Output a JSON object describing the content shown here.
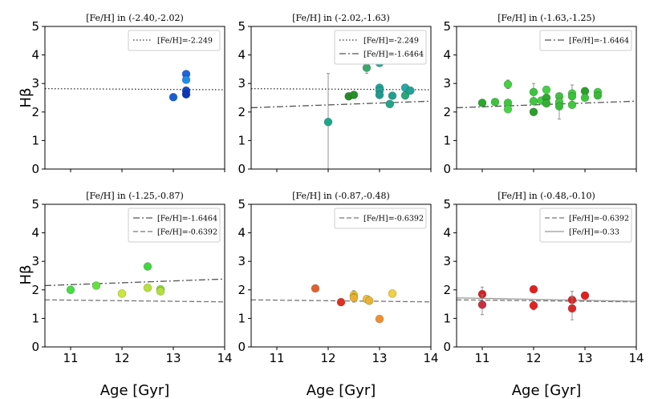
{
  "figure": {
    "ylabel": "Hβ",
    "xlabel": "Age [Gyr]",
    "xlim": [
      10.5,
      14
    ],
    "ylim": [
      0,
      5
    ],
    "xticks": [
      "11",
      "12",
      "13",
      "14"
    ],
    "yticks": [
      "0",
      "1",
      "2",
      "3",
      "4",
      "5"
    ],
    "colors": {
      "line_dotted": "#333333",
      "line_dashdot": "#555555",
      "line_dashed": "#777777",
      "line_solid": "#999999",
      "errorbar": "#888888"
    }
  },
  "chart_data": [
    {
      "type": "scatter",
      "title": "[Fe/H] in (-2.40,-2.02)",
      "legend": [
        {
          "label": "[Fe/H]=-2.249",
          "style": "dotted"
        }
      ],
      "lines": [
        {
          "style": "dotted",
          "x": [
            10.5,
            14
          ],
          "y": [
            2.82,
            2.78
          ]
        }
      ],
      "points": [
        {
          "x": 13.0,
          "y": 2.52,
          "err": 0.05,
          "color": "#1a5fd0"
        },
        {
          "x": 13.25,
          "y": 3.33,
          "err": 0.05,
          "color": "#1e63e0"
        },
        {
          "x": 13.25,
          "y": 3.13,
          "err": 0.05,
          "color": "#1f8ee8"
        },
        {
          "x": 13.25,
          "y": 2.75,
          "err": 0.05,
          "color": "#1247c9"
        },
        {
          "x": 13.25,
          "y": 2.62,
          "err": 0.05,
          "color": "#0e34b8"
        }
      ]
    },
    {
      "type": "scatter",
      "title": "[Fe/H] in (-2.02,-1.63)",
      "legend": [
        {
          "label": "[Fe/H]=-2.249",
          "style": "dotted"
        },
        {
          "label": "[Fe/H]=-1.6464",
          "style": "dashdot"
        }
      ],
      "lines": [
        {
          "style": "dotted",
          "x": [
            10.5,
            14
          ],
          "y": [
            2.82,
            2.78
          ]
        },
        {
          "style": "dashdot",
          "x": [
            10.5,
            14
          ],
          "y": [
            2.15,
            2.38
          ]
        }
      ],
      "points": [
        {
          "x": 12.0,
          "y": 1.65,
          "err": 1.7,
          "color": "#1aa88a"
        },
        {
          "x": 12.4,
          "y": 2.55,
          "err": 0.05,
          "color": "#2a8a28"
        },
        {
          "x": 12.5,
          "y": 2.6,
          "err": 0.05,
          "color": "#278f2a"
        },
        {
          "x": 12.75,
          "y": 3.55,
          "err": 0.2,
          "color": "#3aa86a"
        },
        {
          "x": 13.0,
          "y": 3.72,
          "err": 0.05,
          "color": "#1fa99e"
        },
        {
          "x": 13.0,
          "y": 2.85,
          "err": 0.05,
          "color": "#22a59a"
        },
        {
          "x": 13.0,
          "y": 2.75,
          "err": 0.05,
          "color": "#24a096"
        },
        {
          "x": 13.0,
          "y": 2.6,
          "err": 0.05,
          "color": "#1e9a90"
        },
        {
          "x": 13.25,
          "y": 2.57,
          "err": 0.05,
          "color": "#1f9f8e"
        },
        {
          "x": 13.2,
          "y": 2.28,
          "err": 0.05,
          "color": "#21a58a"
        },
        {
          "x": 13.5,
          "y": 2.85,
          "err": 0.05,
          "color": "#25a7a2"
        },
        {
          "x": 13.5,
          "y": 2.58,
          "err": 0.05,
          "color": "#2aa77a"
        },
        {
          "x": 13.6,
          "y": 2.75,
          "err": 0.05,
          "color": "#22a296"
        }
      ]
    },
    {
      "type": "scatter",
      "title": "[Fe/H] in (-1.63,-1.25)",
      "legend": [
        {
          "label": "[Fe/H]=-1.6464",
          "style": "dashdot"
        }
      ],
      "lines": [
        {
          "style": "dashdot",
          "x": [
            10.5,
            14
          ],
          "y": [
            2.15,
            2.38
          ]
        }
      ],
      "points": [
        {
          "x": 11.0,
          "y": 2.32,
          "err": 0.05,
          "color": "#2aa82a"
        },
        {
          "x": 11.25,
          "y": 2.35,
          "err": 0.05,
          "color": "#3cc43c"
        },
        {
          "x": 11.5,
          "y": 2.97,
          "err": 0.15,
          "color": "#44d040"
        },
        {
          "x": 11.5,
          "y": 2.32,
          "err": 0.05,
          "color": "#3ec63e"
        },
        {
          "x": 11.5,
          "y": 2.1,
          "err": 0.05,
          "color": "#48d448"
        },
        {
          "x": 12.0,
          "y": 2.7,
          "err": 0.3,
          "color": "#3cc43c"
        },
        {
          "x": 12.0,
          "y": 2.38,
          "err": 0.05,
          "color": "#40c840"
        },
        {
          "x": 12.0,
          "y": 2.0,
          "err": 0.05,
          "color": "#2c9e2c"
        },
        {
          "x": 12.15,
          "y": 2.4,
          "err": 0.05,
          "color": "#44cc44"
        },
        {
          "x": 12.25,
          "y": 2.78,
          "err": 0.05,
          "color": "#46d046"
        },
        {
          "x": 12.25,
          "y": 2.5,
          "err": 0.05,
          "color": "#2ea82e"
        },
        {
          "x": 12.25,
          "y": 2.3,
          "err": 0.05,
          "color": "#34b034"
        },
        {
          "x": 12.5,
          "y": 2.55,
          "err": 0.05,
          "color": "#3cc43c"
        },
        {
          "x": 12.5,
          "y": 2.35,
          "err": 0.05,
          "color": "#42ca42"
        },
        {
          "x": 12.5,
          "y": 2.2,
          "err": 0.45,
          "color": "#38ba38"
        },
        {
          "x": 12.75,
          "y": 2.65,
          "err": 0.3,
          "color": "#46d046"
        },
        {
          "x": 12.75,
          "y": 2.55,
          "err": 0.05,
          "color": "#3ac23a"
        },
        {
          "x": 12.75,
          "y": 2.25,
          "err": 0.05,
          "color": "#40c840"
        },
        {
          "x": 13.0,
          "y": 2.73,
          "err": 0.05,
          "color": "#2c9e2c"
        },
        {
          "x": 13.0,
          "y": 2.5,
          "err": 0.05,
          "color": "#3cc43c"
        },
        {
          "x": 13.25,
          "y": 2.7,
          "err": 0.05,
          "color": "#42ca42"
        },
        {
          "x": 13.25,
          "y": 2.58,
          "err": 0.05,
          "color": "#38ba38"
        }
      ]
    },
    {
      "type": "scatter",
      "title": "[Fe/H] in (-1.25,-0.87)",
      "legend": [
        {
          "label": "[Fe/H]=-1.6464",
          "style": "dashdot"
        },
        {
          "label": "[Fe/H]=-0.6392",
          "style": "dashed"
        }
      ],
      "lines": [
        {
          "style": "dashdot",
          "x": [
            10.5,
            14
          ],
          "y": [
            2.15,
            2.38
          ]
        },
        {
          "style": "dashed",
          "x": [
            10.5,
            14
          ],
          "y": [
            1.65,
            1.58
          ]
        }
      ],
      "points": [
        {
          "x": 11.0,
          "y": 2.0,
          "err": 0.05,
          "color": "#44dd44"
        },
        {
          "x": 11.5,
          "y": 2.15,
          "err": 0.05,
          "color": "#66e040"
        },
        {
          "x": 12.0,
          "y": 1.87,
          "err": 0.1,
          "color": "#c8e63c"
        },
        {
          "x": 12.5,
          "y": 2.82,
          "err": 0.05,
          "color": "#40d840"
        },
        {
          "x": 12.5,
          "y": 2.07,
          "err": 0.05,
          "color": "#b8e03a"
        },
        {
          "x": 12.75,
          "y": 2.02,
          "err": 0.05,
          "color": "#8edc3c"
        },
        {
          "x": 12.75,
          "y": 1.95,
          "err": 0.05,
          "color": "#b0e03a"
        }
      ]
    },
    {
      "type": "scatter",
      "title": "[Fe/H] in (-0.87,-0.48)",
      "legend": [
        {
          "label": "[Fe/H]=-0.6392",
          "style": "dashed"
        }
      ],
      "lines": [
        {
          "style": "dashed",
          "x": [
            10.5,
            14
          ],
          "y": [
            1.65,
            1.58
          ]
        }
      ],
      "points": [
        {
          "x": 11.75,
          "y": 2.05,
          "err": 0.05,
          "color": "#e06030"
        },
        {
          "x": 12.25,
          "y": 1.57,
          "err": 0.05,
          "color": "#e03020"
        },
        {
          "x": 12.5,
          "y": 1.82,
          "err": 0.15,
          "color": "#e8c030"
        },
        {
          "x": 12.5,
          "y": 1.72,
          "err": 0.15,
          "color": "#e8b030"
        },
        {
          "x": 12.75,
          "y": 1.68,
          "err": 0.05,
          "color": "#ecc040"
        },
        {
          "x": 12.8,
          "y": 1.62,
          "err": 0.05,
          "color": "#e8b438"
        },
        {
          "x": 13.0,
          "y": 0.98,
          "err": 0.1,
          "color": "#ec9030"
        },
        {
          "x": 13.25,
          "y": 1.87,
          "err": 0.1,
          "color": "#eed040"
        }
      ]
    },
    {
      "type": "scatter",
      "title": "[Fe/H] in (-0.48,-0.10)",
      "legend": [
        {
          "label": "[Fe/H]=-0.6392",
          "style": "dashed"
        },
        {
          "label": "[Fe/H]=-0.33",
          "style": "solid"
        }
      ],
      "lines": [
        {
          "style": "dashed",
          "x": [
            10.5,
            14
          ],
          "y": [
            1.65,
            1.58
          ]
        },
        {
          "style": "solid",
          "x": [
            10.5,
            14
          ],
          "y": [
            1.72,
            1.6
          ]
        }
      ],
      "points": [
        {
          "x": 11.0,
          "y": 1.85,
          "err": 0.25,
          "color": "#d82020"
        },
        {
          "x": 11.0,
          "y": 1.48,
          "err": 0.35,
          "color": "#c83040"
        },
        {
          "x": 12.0,
          "y": 2.02,
          "err": 0.05,
          "color": "#e02020"
        },
        {
          "x": 12.0,
          "y": 1.45,
          "err": 0.15,
          "color": "#e02424"
        },
        {
          "x": 12.75,
          "y": 1.65,
          "err": 0.3,
          "color": "#e02020"
        },
        {
          "x": 12.75,
          "y": 1.35,
          "err": 0.4,
          "color": "#d82828"
        },
        {
          "x": 13.0,
          "y": 1.8,
          "err": 0.05,
          "color": "#e02020"
        }
      ]
    }
  ]
}
